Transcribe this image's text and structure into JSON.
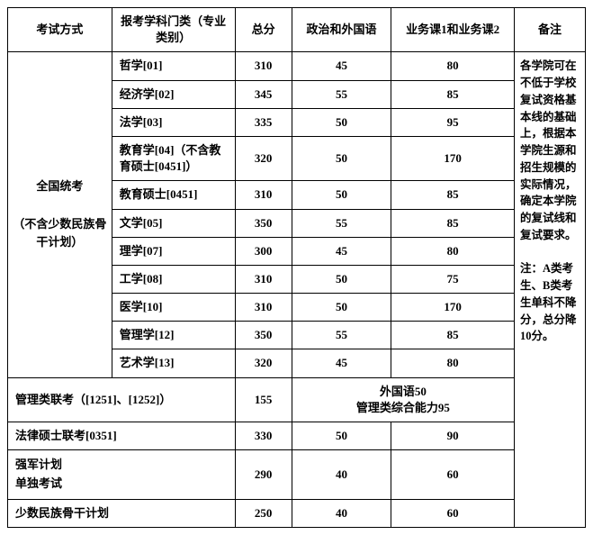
{
  "headers": {
    "exam_method": "考试方式",
    "subject": "报考学科门类（专业类别）",
    "total": "总分",
    "politics": "政治和外国语",
    "business": "业务课1和业务课2",
    "remark": "备注"
  },
  "national_exam_label": "全国统考\n\n（不含少数民族骨干计划）",
  "rows": [
    {
      "subject": "哲学[01]",
      "total": "310",
      "politics": "45",
      "business": "80"
    },
    {
      "subject": "经济学[02]",
      "total": "345",
      "politics": "55",
      "business": "85"
    },
    {
      "subject": "法学[03]",
      "total": "335",
      "politics": "50",
      "business": "95"
    },
    {
      "subject": "教育学[04]（不含教育硕士[0451]）",
      "total": "320",
      "politics": "50",
      "business": "170"
    },
    {
      "subject": "教育硕士[0451]",
      "total": "310",
      "politics": "50",
      "business": "85"
    },
    {
      "subject": "文学[05]",
      "total": "350",
      "politics": "55",
      "business": "85"
    },
    {
      "subject": "理学[07]",
      "total": "300",
      "politics": "45",
      "business": "80"
    },
    {
      "subject": "工学[08]",
      "total": "310",
      "politics": "50",
      "business": "75"
    },
    {
      "subject": "医学[10]",
      "total": "310",
      "politics": "50",
      "business": "170"
    },
    {
      "subject": "管理学[12]",
      "total": "350",
      "politics": "55",
      "business": "85"
    },
    {
      "subject": "艺术学[13]",
      "total": "320",
      "politics": "45",
      "business": "80"
    }
  ],
  "mgmt_exam": {
    "label": "管理类联考（[1251]、[1252]）",
    "total": "155",
    "combined": "外国语50\n管理类综合能力95"
  },
  "law_exam": {
    "label": "法律硕士联考[0351]",
    "total": "330",
    "politics": "50",
    "business": "90"
  },
  "military_exam": {
    "label": "强军计划\n单独考试",
    "total": "290",
    "politics": "40",
    "business": "60"
  },
  "minority_exam": {
    "label": "少数民族骨干计划",
    "total": "250",
    "politics": "40",
    "business": "60"
  },
  "remark_text": "各学院可在不低于学校复试资格基本线的基础上，根据本学院生源和招生规模的实际情况，确定本学院的复试线和复试要求。\n\n注：A类考生、B类考生单科不降分，总分降10分。"
}
